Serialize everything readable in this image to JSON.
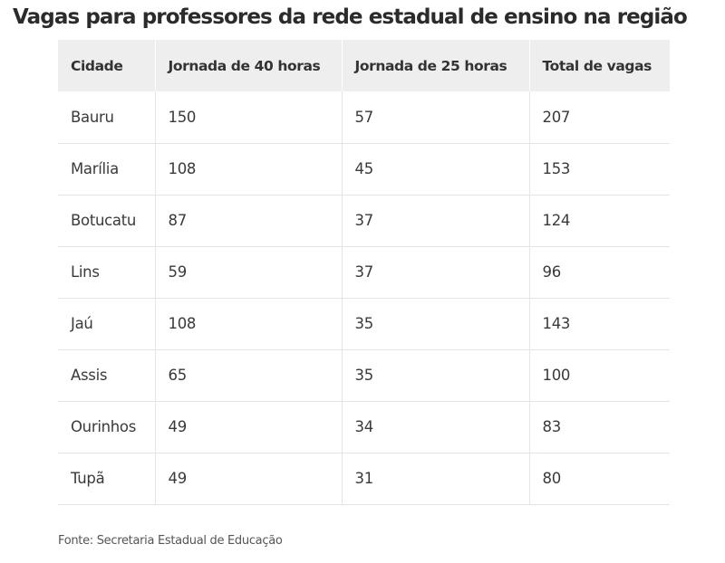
{
  "title": "Vagas para professores da rede estadual de ensino na região",
  "source": "Fonte: Secretaria Estadual de Educação",
  "chart_data": {
    "type": "table",
    "title": "Vagas para professores da rede estadual de ensino na região",
    "columns": [
      "Cidade",
      "Jornada de 40 horas",
      "Jornada de 25 horas",
      "Total de vagas"
    ],
    "rows": [
      [
        "Bauru",
        150,
        57,
        207
      ],
      [
        "Marília",
        108,
        45,
        153
      ],
      [
        "Botucatu",
        87,
        37,
        124
      ],
      [
        "Lins",
        59,
        37,
        96
      ],
      [
        "Jaú",
        108,
        35,
        143
      ],
      [
        "Assis",
        65,
        35,
        100
      ],
      [
        "Ourinhos",
        49,
        34,
        83
      ],
      [
        "Tupã",
        49,
        31,
        80
      ]
    ]
  }
}
